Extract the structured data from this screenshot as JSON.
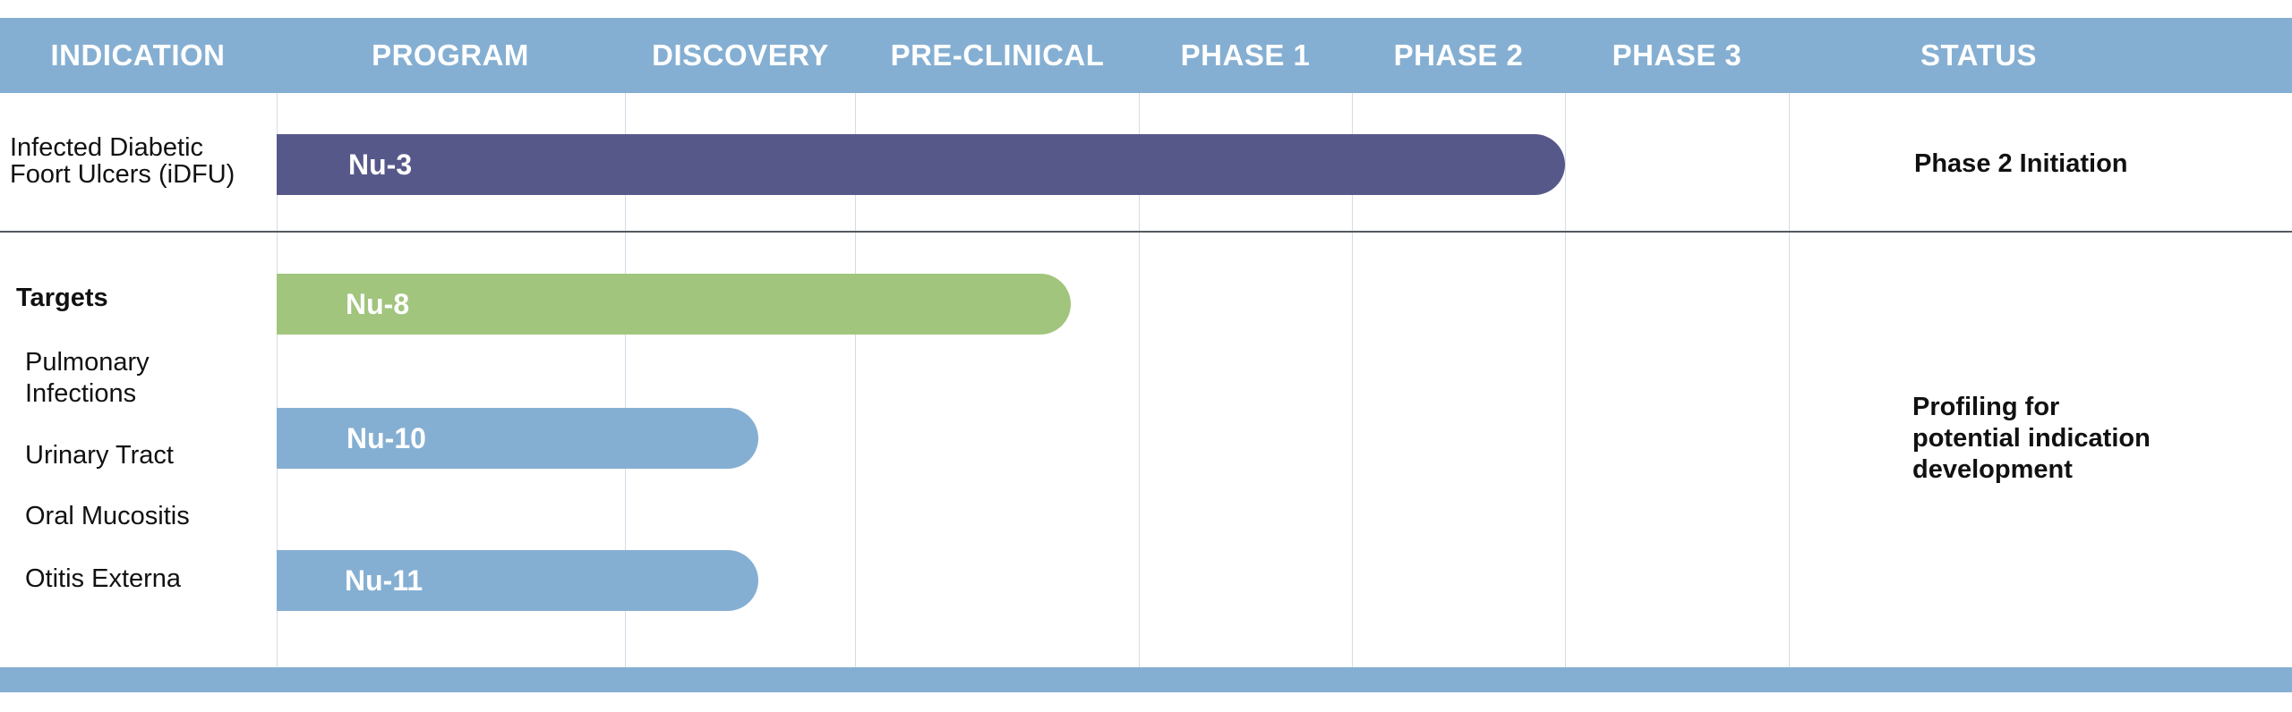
{
  "chart_data": {
    "type": "pipeline",
    "stages": [
      "DISCOVERY",
      "PRE-CLINICAL",
      "PHASE 1",
      "PHASE 2",
      "PHASE 3"
    ],
    "header": {
      "indication": "INDICATION",
      "program": "PROGRAM",
      "discovery": "DISCOVERY",
      "preclinical": "PRE-CLINICAL",
      "phase1": "PHASE 1",
      "phase2": "PHASE 2",
      "phase3": "PHASE 3",
      "status": "STATUS"
    },
    "groups": [
      {
        "indication_line1": "Infected Diabetic",
        "indication_line2": "Foort Ulcers (iDFU)",
        "status": "Phase 2 Initiation"
      },
      {
        "heading": "Targets",
        "indications": [
          "Pulmonary",
          "Infections",
          "Urinary Tract",
          "Oral Mucositis",
          "Otitis Externa"
        ],
        "status_line1": "Profiling for",
        "status_line2": "potential indication",
        "status_line3": "development"
      }
    ],
    "programs": [
      {
        "name": "Nu-3",
        "progress": 0.535,
        "color": "#57588a"
      },
      {
        "name": "Nu-8",
        "progress": 0.33,
        "color": "#a1c57d"
      },
      {
        "name": "Nu-10",
        "progress": 0.2,
        "color": "#85afd2"
      },
      {
        "name": "Nu-11",
        "progress": 0.2,
        "color": "#85afd2"
      }
    ]
  }
}
